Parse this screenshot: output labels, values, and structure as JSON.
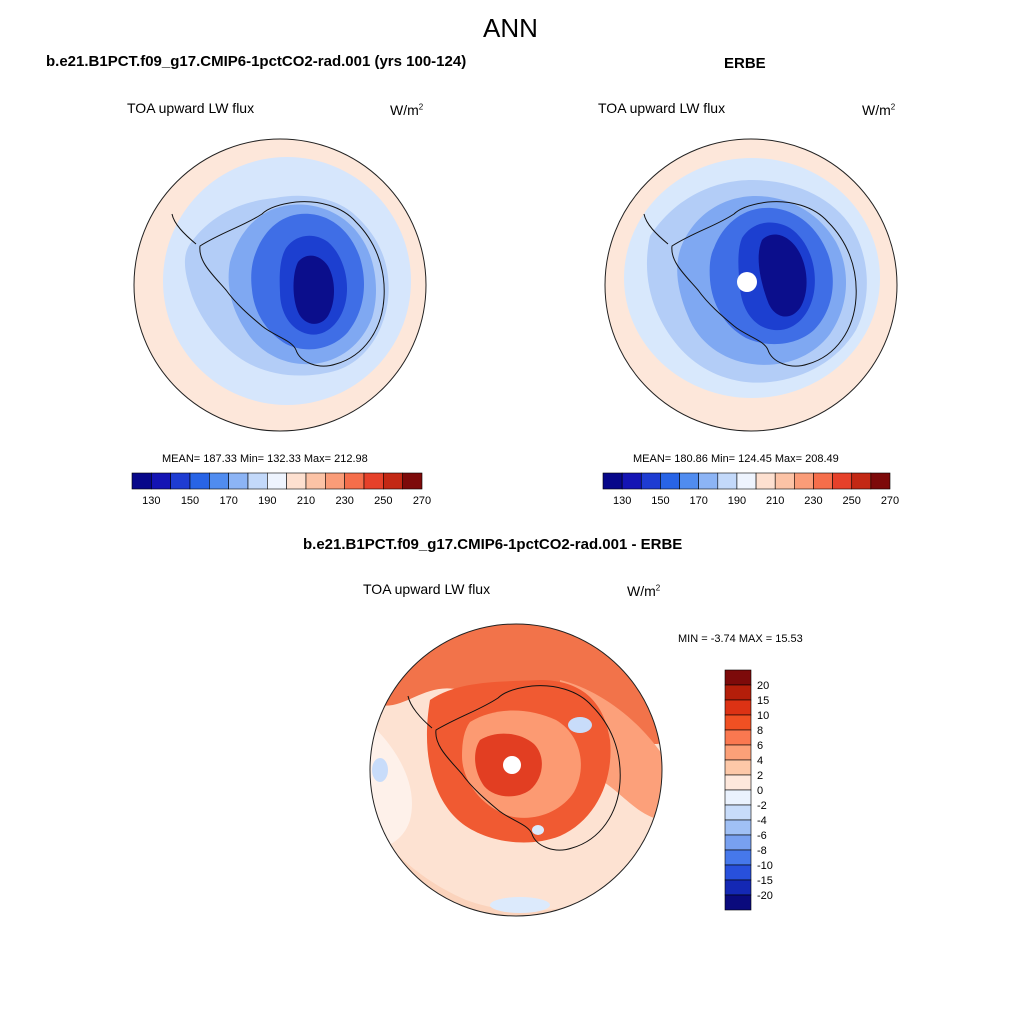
{
  "figure": {
    "title": "ANN"
  },
  "panels": [
    {
      "case_title": "b.e21.B1PCT.f09_g17.CMIP6-1pctCO2-rad.001 (yrs 100-124)",
      "variable": "TOA upward LW flux",
      "units_base": "W/m",
      "units_exp": "2",
      "stats": "MEAN= 187.33  Min= 132.33  Max= 212.98"
    },
    {
      "case_title": "ERBE",
      "variable": "TOA upward LW flux",
      "units_base": "W/m",
      "units_exp": "2",
      "stats": "MEAN= 180.86  Min= 124.45  Max= 208.49"
    },
    {
      "case_title": "b.e21.B1PCT.f09_g17.CMIP6-1pctCO2-rad.001 - ERBE",
      "variable": "TOA upward LW flux",
      "units_base": "W/m",
      "units_exp": "2",
      "stats": "MIN =  -3.74 MAX =  15.53"
    }
  ],
  "abs_colorbar": {
    "ticks": [
      "130",
      "150",
      "170",
      "190",
      "210",
      "230",
      "250",
      "270"
    ],
    "colors": [
      "#08088a",
      "#1414b4",
      "#1e3cd2",
      "#2864e6",
      "#508cf0",
      "#8cb4f5",
      "#c3d9fa",
      "#eef4fe",
      "#fde0d0",
      "#fcc3a6",
      "#fa9c78",
      "#f56e4b",
      "#e6412a",
      "#c32814",
      "#7d0a0a"
    ]
  },
  "diff_colorbar": {
    "ticks": [
      "20",
      "15",
      "10",
      "8",
      "6",
      "4",
      "2",
      "0",
      "-2",
      "-4",
      "-6",
      "-8",
      "-10",
      "-15",
      "-20"
    ],
    "colors": [
      "#7d0a0a",
      "#b41e0a",
      "#dc3214",
      "#f05023",
      "#fa7850",
      "#fca078",
      "#fdc8a8",
      "#fee8dc",
      "#eaf2fe",
      "#c8dcfa",
      "#a0c0f5",
      "#78a0f0",
      "#4678eb",
      "#2850dc",
      "#1428b4",
      "#0a0a7d"
    ]
  }
}
